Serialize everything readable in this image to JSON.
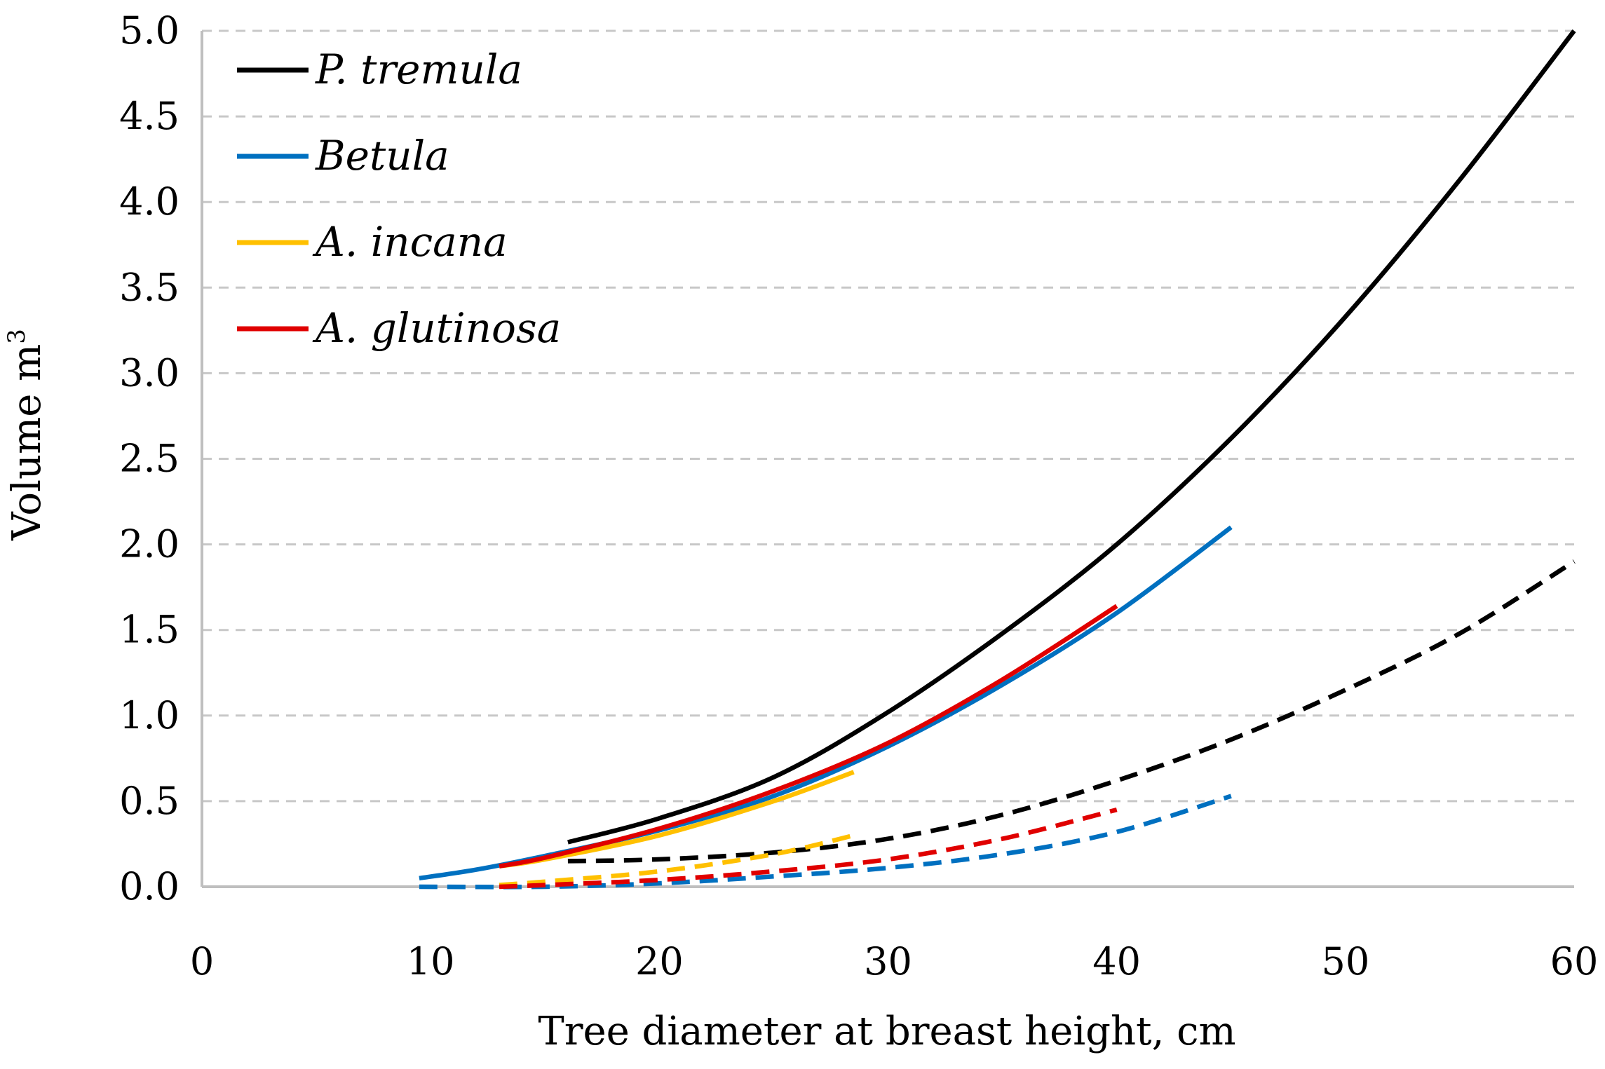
{
  "chart_data": {
    "type": "line",
    "title": "",
    "xlabel": "Tree diameter at breast height, cm",
    "ylabel_base": "Volume m",
    "ylabel_superscript": "3",
    "xlim": [
      0,
      60
    ],
    "ylim": [
      0,
      5
    ],
    "x_ticks": [
      {
        "value": 0,
        "label": "0"
      },
      {
        "value": 10,
        "label": "10"
      },
      {
        "value": 20,
        "label": "20"
      },
      {
        "value": 30,
        "label": "30"
      },
      {
        "value": 40,
        "label": "40"
      },
      {
        "value": 50,
        "label": "50"
      },
      {
        "value": 60,
        "label": "60"
      }
    ],
    "y_ticks": [
      {
        "value": 0,
        "label": "0.0"
      },
      {
        "value": 0.5,
        "label": "0.5"
      },
      {
        "value": 1,
        "label": "1.0"
      },
      {
        "value": 1.5,
        "label": "1.5"
      },
      {
        "value": 2,
        "label": "2.0"
      },
      {
        "value": 2.5,
        "label": "2.5"
      },
      {
        "value": 3,
        "label": "3.0"
      },
      {
        "value": 3.5,
        "label": "3.5"
      },
      {
        "value": 4,
        "label": "4.0"
      },
      {
        "value": 4.5,
        "label": "4.5"
      },
      {
        "value": 5,
        "label": "5.0"
      }
    ],
    "grid": true,
    "legend_position": "top-left",
    "series": [
      {
        "name": "P. tremula",
        "key": "p-tremula-solid",
        "color": "#000000",
        "style": "solid",
        "in_legend": true,
        "x": [
          16,
          20,
          25,
          30,
          35,
          40,
          45,
          50,
          55,
          60
        ],
        "y": [
          0.26,
          0.4,
          0.64,
          1.02,
          1.48,
          2.0,
          2.62,
          3.33,
          4.13,
          5.0
        ]
      },
      {
        "name": "Betula",
        "key": "betula-solid",
        "color": "#0070c0",
        "style": "solid",
        "in_legend": true,
        "x": [
          9.5,
          12,
          15,
          20,
          25,
          30,
          35,
          40,
          45
        ],
        "y": [
          0.05,
          0.1,
          0.18,
          0.33,
          0.53,
          0.82,
          1.18,
          1.6,
          2.1
        ]
      },
      {
        "name": "A. incana",
        "key": "a-incana-solid",
        "color": "#ffc000",
        "style": "solid",
        "in_legend": true,
        "x": [
          13,
          15,
          20,
          25,
          28.5
        ],
        "y": [
          0.12,
          0.16,
          0.3,
          0.5,
          0.67
        ]
      },
      {
        "name": "A. glutinosa",
        "key": "a-glutinosa-solid",
        "color": "#e00000",
        "style": "solid",
        "in_legend": true,
        "x": [
          13,
          15,
          20,
          25,
          30,
          35,
          40
        ],
        "y": [
          0.12,
          0.17,
          0.34,
          0.56,
          0.84,
          1.21,
          1.64
        ]
      },
      {
        "name": "P. tremula (dashed)",
        "key": "p-tremula-dashed",
        "color": "#000000",
        "style": "dashed",
        "in_legend": false,
        "x": [
          16,
          20,
          25,
          30,
          35,
          40,
          45,
          50,
          55,
          60
        ],
        "y": [
          0.15,
          0.16,
          0.2,
          0.28,
          0.42,
          0.62,
          0.86,
          1.15,
          1.48,
          1.9
        ]
      },
      {
        "name": "Betula (dashed)",
        "key": "betula-dashed",
        "color": "#0070c0",
        "style": "dashed",
        "in_legend": false,
        "x": [
          9.5,
          15,
          20,
          25,
          30,
          35,
          40,
          45
        ],
        "y": [
          0.0,
          0.0,
          0.02,
          0.06,
          0.11,
          0.19,
          0.32,
          0.53
        ]
      },
      {
        "name": "A. incana (dashed)",
        "key": "a-incana-dashed",
        "color": "#ffc000",
        "style": "dashed",
        "in_legend": false,
        "x": [
          13,
          15,
          20,
          25,
          28.5
        ],
        "y": [
          0.01,
          0.03,
          0.09,
          0.19,
          0.3
        ]
      },
      {
        "name": "A. glutinosa (dashed)",
        "key": "a-glutinosa-dashed",
        "color": "#e00000",
        "style": "dashed",
        "in_legend": false,
        "x": [
          13,
          15,
          20,
          25,
          30,
          35,
          40
        ],
        "y": [
          0.0,
          0.01,
          0.04,
          0.09,
          0.16,
          0.28,
          0.45
        ]
      }
    ]
  }
}
